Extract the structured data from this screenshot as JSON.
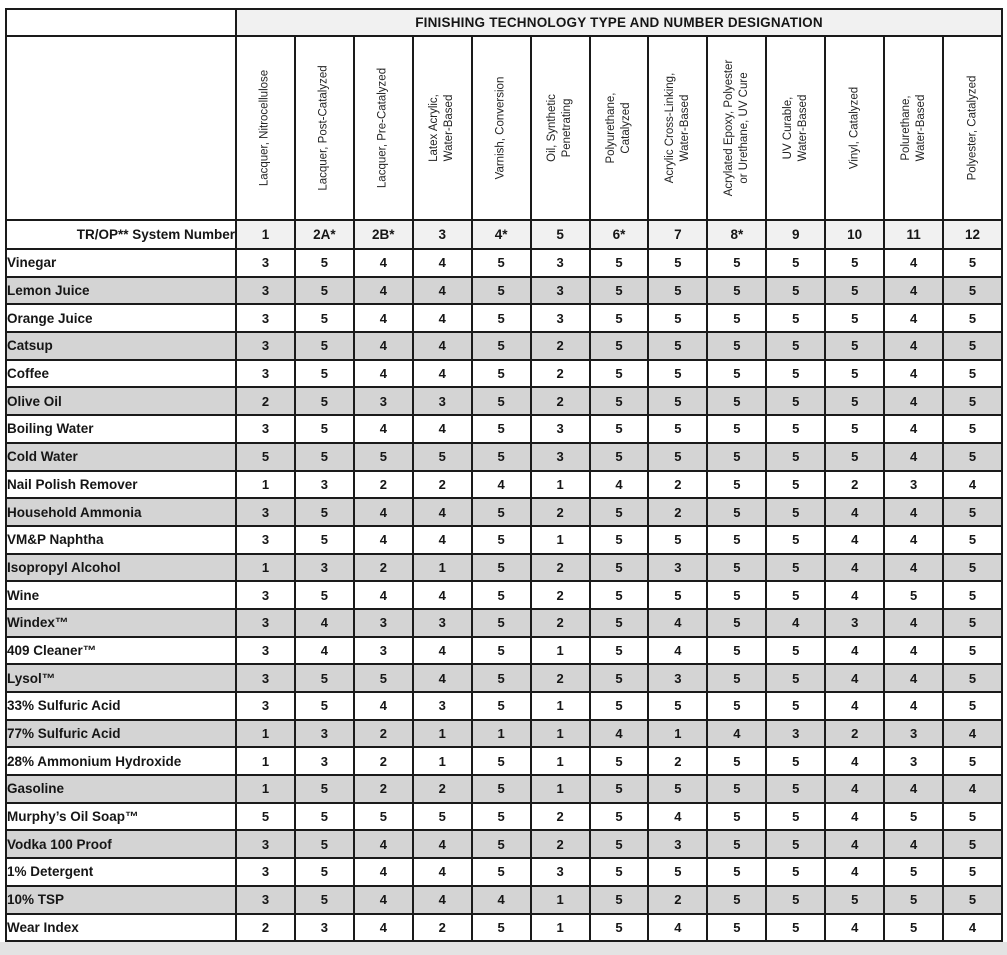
{
  "colors": {
    "border": "#1a1a1a",
    "header_bg": "#f1f1f1",
    "zebra_bg": "#d4d4d4",
    "page_edge": "#e3e3e3"
  },
  "table": {
    "title": "FINISHING TECHNOLOGY TYPE AND NUMBER DESIGNATION",
    "system_row_label": "TR/OP** System Number",
    "column_headers": [
      "Lacquer, Nitrocellulose",
      "Lacquer, Post-Catalyzed",
      "Lacquer, Pre-Catalyzed",
      "Latex Acrylic,\nWater-Based",
      "Varnish, Conversion",
      "Oil, Synthetic\nPenetrating",
      "Polyurethane,\nCatalyzed",
      "Acrylic Cross-Linking,\nWater-Based",
      "Acrylated Epoxy, Polyester\nor Urethane, UV Cure",
      "UV Curable,\nWater-Based",
      "Vinyl, Catalyzed",
      "Polurethane,\nWater-Based",
      "Polyester, Catalyzed"
    ],
    "system_numbers": [
      "1",
      "2A*",
      "2B*",
      "3",
      "4*",
      "5",
      "6*",
      "7",
      "8*",
      "9",
      "10",
      "11",
      "12"
    ],
    "rows": [
      {
        "label": "Vinegar",
        "values": [
          3,
          5,
          4,
          4,
          5,
          3,
          5,
          5,
          5,
          5,
          5,
          4,
          5
        ]
      },
      {
        "label": "Lemon Juice",
        "values": [
          3,
          5,
          4,
          4,
          5,
          3,
          5,
          5,
          5,
          5,
          5,
          4,
          5
        ]
      },
      {
        "label": "Orange Juice",
        "values": [
          3,
          5,
          4,
          4,
          5,
          3,
          5,
          5,
          5,
          5,
          5,
          4,
          5
        ]
      },
      {
        "label": "Catsup",
        "values": [
          3,
          5,
          4,
          4,
          5,
          2,
          5,
          5,
          5,
          5,
          5,
          4,
          5
        ]
      },
      {
        "label": "Coffee",
        "values": [
          3,
          5,
          4,
          4,
          5,
          2,
          5,
          5,
          5,
          5,
          5,
          4,
          5
        ]
      },
      {
        "label": "Olive Oil",
        "values": [
          2,
          5,
          3,
          3,
          5,
          2,
          5,
          5,
          5,
          5,
          5,
          4,
          5
        ]
      },
      {
        "label": "Boiling Water",
        "values": [
          3,
          5,
          4,
          4,
          5,
          3,
          5,
          5,
          5,
          5,
          5,
          4,
          5
        ]
      },
      {
        "label": "Cold Water",
        "values": [
          5,
          5,
          5,
          5,
          5,
          3,
          5,
          5,
          5,
          5,
          5,
          4,
          5
        ]
      },
      {
        "label": "Nail Polish Remover",
        "values": [
          1,
          3,
          2,
          2,
          4,
          1,
          4,
          2,
          5,
          5,
          2,
          3,
          4
        ]
      },
      {
        "label": "Household Ammonia",
        "values": [
          3,
          5,
          4,
          4,
          5,
          2,
          5,
          2,
          5,
          5,
          4,
          4,
          5
        ]
      },
      {
        "label": "VM&P Naphtha",
        "values": [
          3,
          5,
          4,
          4,
          5,
          1,
          5,
          5,
          5,
          5,
          4,
          4,
          5
        ]
      },
      {
        "label": "Isopropyl Alcohol",
        "values": [
          1,
          3,
          2,
          1,
          5,
          2,
          5,
          3,
          5,
          5,
          4,
          4,
          5
        ]
      },
      {
        "label": "Wine",
        "values": [
          3,
          5,
          4,
          4,
          5,
          2,
          5,
          5,
          5,
          5,
          4,
          5,
          5
        ]
      },
      {
        "label": "Windex™",
        "values": [
          3,
          4,
          3,
          3,
          5,
          2,
          5,
          4,
          5,
          4,
          3,
          4,
          5
        ]
      },
      {
        "label": "409 Cleaner™",
        "values": [
          3,
          4,
          3,
          4,
          5,
          1,
          5,
          4,
          5,
          5,
          4,
          4,
          5
        ]
      },
      {
        "label": "Lysol™",
        "values": [
          3,
          5,
          5,
          4,
          5,
          2,
          5,
          3,
          5,
          5,
          4,
          4,
          5
        ]
      },
      {
        "label": "33% Sulfuric Acid",
        "values": [
          3,
          5,
          4,
          3,
          5,
          1,
          5,
          5,
          5,
          5,
          4,
          4,
          5
        ]
      },
      {
        "label": "77% Sulfuric Acid",
        "values": [
          1,
          3,
          2,
          1,
          1,
          1,
          4,
          1,
          4,
          3,
          2,
          3,
          4
        ]
      },
      {
        "label": "28% Ammonium Hydroxide",
        "values": [
          1,
          3,
          2,
          1,
          5,
          1,
          5,
          2,
          5,
          5,
          4,
          3,
          5
        ]
      },
      {
        "label": "Gasoline",
        "values": [
          1,
          5,
          2,
          2,
          5,
          1,
          5,
          5,
          5,
          5,
          4,
          4,
          4
        ]
      },
      {
        "label": "Murphy’s Oil Soap™",
        "values": [
          5,
          5,
          5,
          5,
          5,
          2,
          5,
          4,
          5,
          5,
          4,
          5,
          5
        ]
      },
      {
        "label": "Vodka 100 Proof",
        "values": [
          3,
          5,
          4,
          4,
          5,
          2,
          5,
          3,
          5,
          5,
          4,
          4,
          5
        ]
      },
      {
        "label": "1% Detergent",
        "values": [
          3,
          5,
          4,
          4,
          5,
          3,
          5,
          5,
          5,
          5,
          4,
          5,
          5
        ]
      },
      {
        "label": "10% TSP",
        "values": [
          3,
          5,
          4,
          4,
          4,
          1,
          5,
          2,
          5,
          5,
          5,
          5,
          5
        ]
      },
      {
        "label": "Wear Index",
        "values": [
          2,
          3,
          4,
          2,
          5,
          1,
          5,
          4,
          5,
          5,
          4,
          5,
          4
        ]
      }
    ]
  }
}
